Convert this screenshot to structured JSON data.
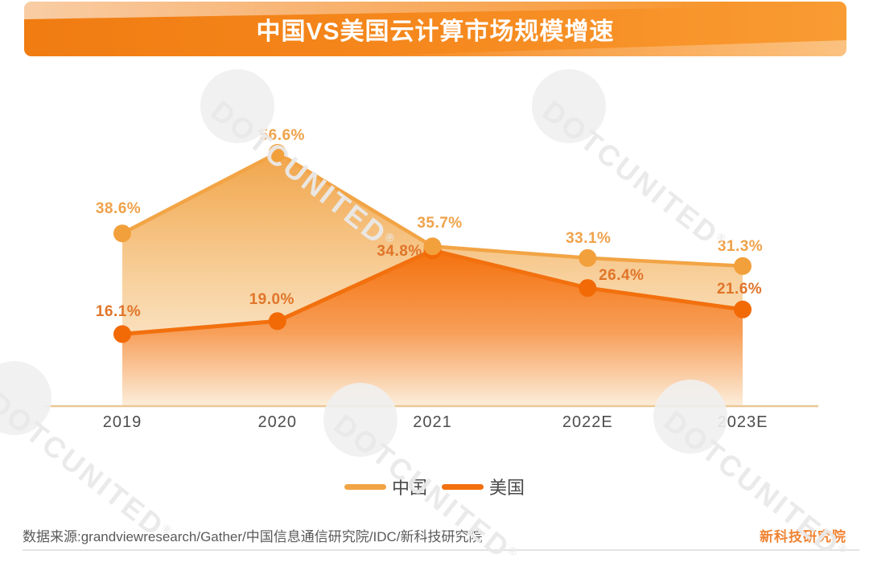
{
  "title": "中国VS美国云计算市场规模增速",
  "watermark": {
    "text": "DOTCUNITED",
    "reg": "®"
  },
  "chart_data": {
    "type": "area",
    "title": "中国VS美国云计算市场规模增速",
    "categories": [
      "2019",
      "2020",
      "2021",
      "2022E",
      "2023E"
    ],
    "series": [
      {
        "name": "中国",
        "values": [
          38.6,
          56.6,
          35.7,
          33.1,
          31.3
        ],
        "labels": [
          "38.6%",
          "56.6%",
          "35.7%",
          "33.1%",
          "31.3%"
        ],
        "line_color": "#F2A445",
        "marker_color": "#F2A03C",
        "label_color": "#EFA24A",
        "area_gradient": [
          "#F1A54A",
          "#F8D2A0",
          "#FDF3E6"
        ]
      },
      {
        "name": "美国",
        "values": [
          16.1,
          19.0,
          34.8,
          26.4,
          21.6
        ],
        "labels": [
          "16.1%",
          "19.0%",
          "34.8%",
          "26.4%",
          "21.6%"
        ],
        "line_color": "#F2700E",
        "marker_color": "#F26A06",
        "label_color": "#E0752A",
        "area_gradient": [
          "#F4710D",
          "#F79E58",
          "#FCEEDB"
        ]
      }
    ],
    "unit": "%",
    "ylim": [
      0,
      60
    ],
    "grid": false,
    "legend_position": "bottom",
    "axis_line_color": "#EBC795",
    "x_label_color": "#4D4D4D"
  },
  "legend": {
    "items": [
      {
        "label": "中国",
        "color": "#F2A445"
      },
      {
        "label": "美国",
        "color": "#F2700E"
      }
    ]
  },
  "footer": {
    "source": "数据来源:grandviewresearch/Gather/中国信息通信研究院/IDC/新科技研究院",
    "brand": "新科技研究院"
  }
}
